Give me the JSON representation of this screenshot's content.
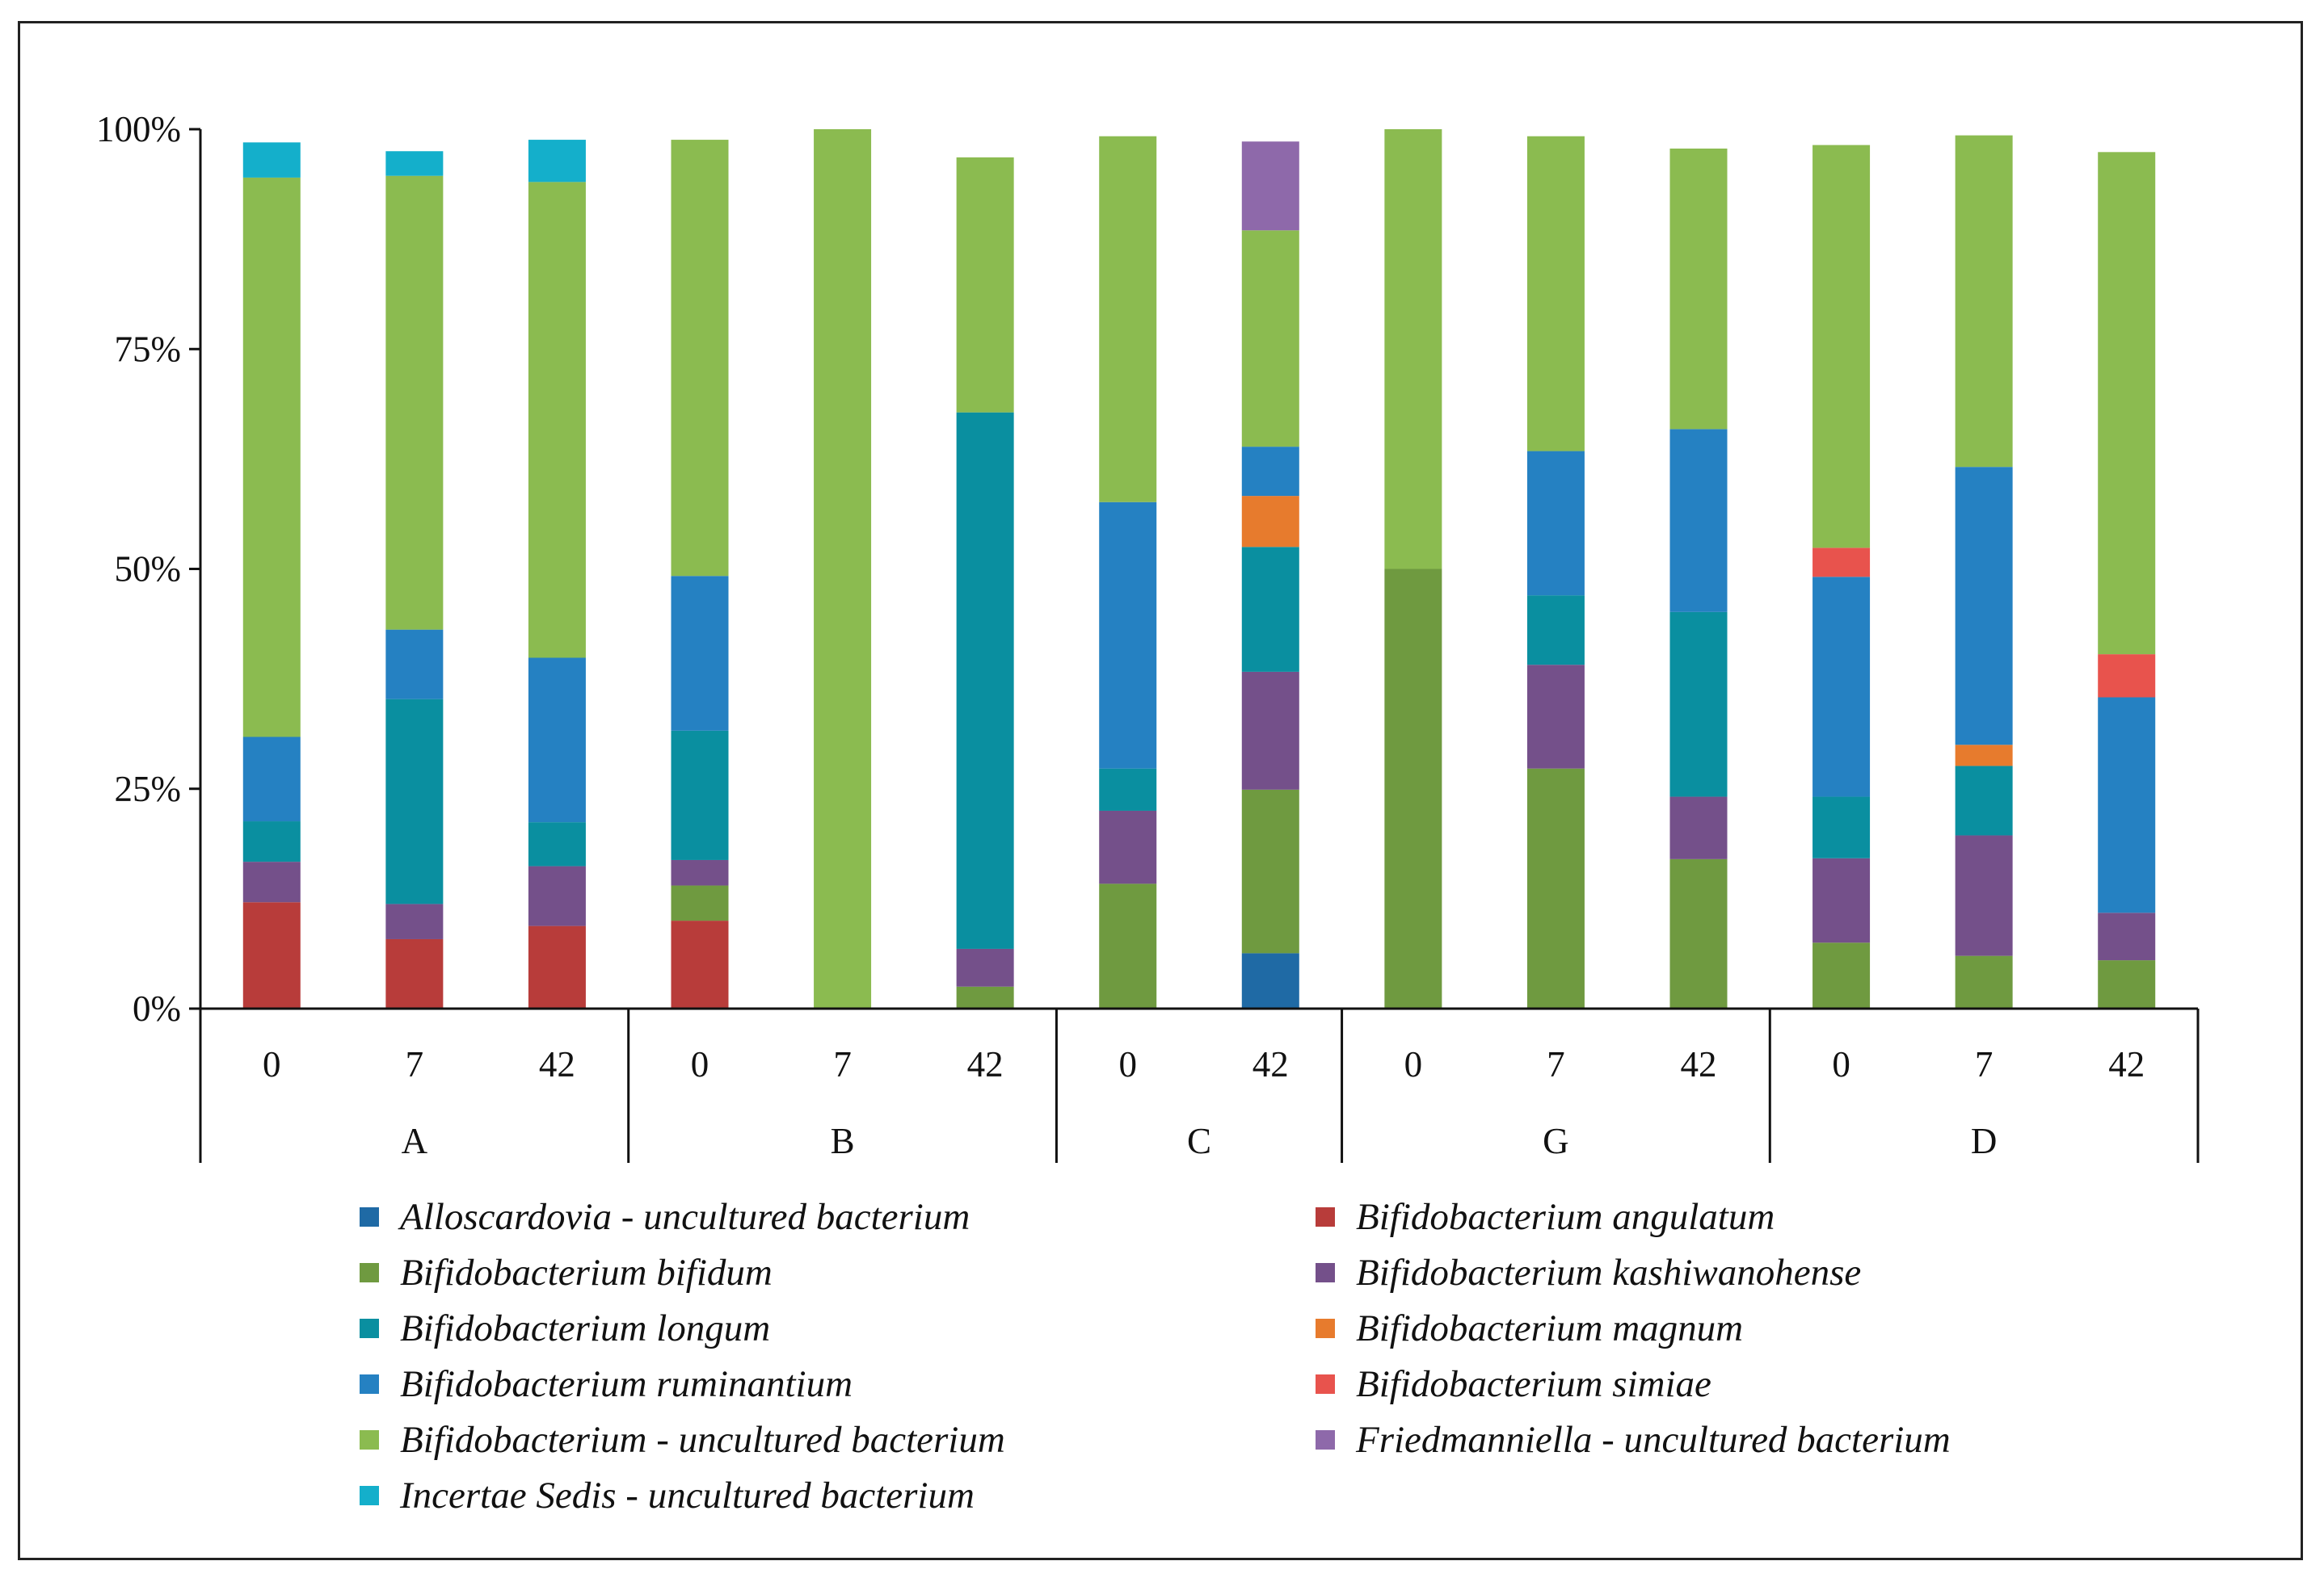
{
  "chart_data": {
    "type": "bar",
    "stacked": true,
    "title": "",
    "xlabel": "",
    "ylabel": "",
    "ylim": [
      0,
      100
    ],
    "y_ticks": [
      "0%",
      "25%",
      "50%",
      "75%",
      "100%"
    ],
    "grid": false,
    "legend_position": "bottom",
    "groups": [
      {
        "name": "A",
        "categories": [
          "0",
          "7",
          "42"
        ]
      },
      {
        "name": "B",
        "categories": [
          "0",
          "7",
          "42"
        ]
      },
      {
        "name": "C",
        "categories": [
          "0",
          "42"
        ]
      },
      {
        "name": "G",
        "categories": [
          "0",
          "7",
          "42"
        ]
      },
      {
        "name": "D",
        "categories": [
          "0",
          "7",
          "42"
        ]
      }
    ],
    "categories": [
      "A 0",
      "A 7",
      "A 42",
      "B 0",
      "B 7",
      "B 42",
      "C 0",
      "C 42",
      "G 0",
      "G 7",
      "G 42",
      "D 0",
      "D 7",
      "D 42"
    ],
    "series": [
      {
        "name": "Alloscardovia - uncultured bacterium",
        "color": "#1F6AA5",
        "values": [
          0,
          0,
          0,
          0,
          0,
          0,
          0,
          6.3,
          0,
          0,
          0,
          0,
          0,
          0
        ]
      },
      {
        "name": "Bifidobacterium angulatum",
        "color": "#B83C3A",
        "values": [
          12.1,
          7.9,
          9.4,
          10,
          0,
          0,
          0,
          0,
          0,
          0,
          0,
          0,
          0,
          0
        ]
      },
      {
        "name": "Bifidobacterium bifidum",
        "color": "#6F9A40",
        "values": [
          0,
          0,
          0,
          4,
          0,
          2.5,
          14.2,
          18.6,
          50,
          27.3,
          17,
          7.5,
          6,
          5.5
        ]
      },
      {
        "name": "Bifidobacterium kashiwanohense",
        "color": "#74508A",
        "values": [
          4.6,
          4,
          6.8,
          2.9,
          0,
          4.3,
          8.3,
          13.4,
          0,
          11.8,
          7.1,
          9.6,
          13.7,
          5.4
        ]
      },
      {
        "name": "Bifidobacterium longum",
        "color": "#0A8FA0",
        "values": [
          4.6,
          23.3,
          5,
          14.7,
          0,
          61,
          4.8,
          14.2,
          0,
          7.9,
          21,
          7,
          7.9,
          0
        ]
      },
      {
        "name": "Bifidobacterium magnum",
        "color": "#E77B2D",
        "values": [
          0,
          0,
          0,
          0,
          0,
          0,
          0,
          5.8,
          0,
          0,
          0,
          0,
          2.4,
          0
        ]
      },
      {
        "name": "Bifidobacterium ruminantium",
        "color": "#2581C2",
        "values": [
          9.6,
          7.9,
          18.7,
          17.6,
          0,
          0,
          30.3,
          5.6,
          0,
          16.4,
          20.8,
          25,
          31.6,
          24.5
        ]
      },
      {
        "name": "Bifidobacterium simiae",
        "color": "#E8534D",
        "values": [
          0,
          0,
          0,
          0,
          0,
          0,
          0,
          0,
          0,
          0,
          0,
          3.3,
          0,
          4.9
        ]
      },
      {
        "name": "Bifidobacterium - uncultured bacterium",
        "color": "#8BBB50",
        "values": [
          63.6,
          51.6,
          54.1,
          49.6,
          100,
          29,
          41.6,
          24.6,
          50,
          35.8,
          31.9,
          45.8,
          37.7,
          57.1
        ]
      },
      {
        "name": "Friedmanniella - uncultured bacterium",
        "color": "#8E69AA",
        "values": [
          0,
          0,
          0,
          0,
          0,
          0,
          0,
          10.1,
          0,
          0,
          0,
          0,
          0,
          0
        ]
      },
      {
        "name": "Incertae Sedis - uncultured bacterium",
        "color": "#14AFCB",
        "values": [
          4,
          2.8,
          4.8,
          0,
          0,
          0,
          0,
          0,
          0,
          0,
          0,
          0,
          0,
          0
        ]
      }
    ]
  }
}
